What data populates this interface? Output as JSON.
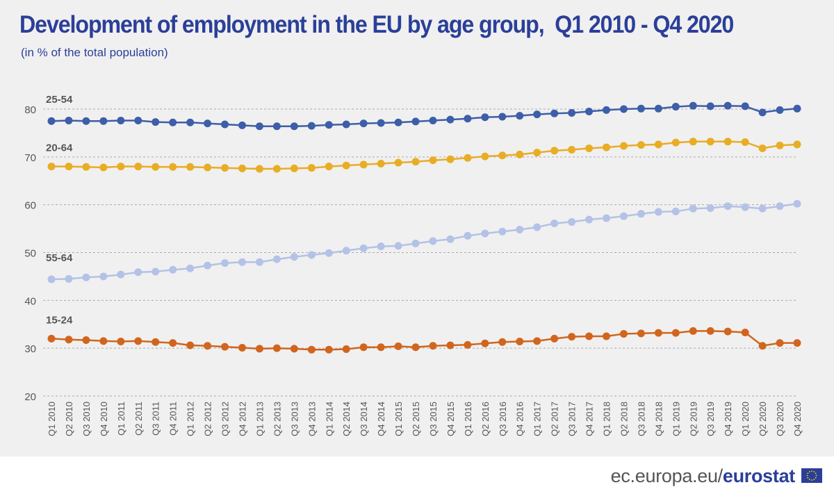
{
  "title": "Development of employment in the EU by age group,  Q1 2010 - Q4 2020",
  "subtitle": "(in % of the total population)",
  "footer": {
    "site": "ec.europa.eu/",
    "brand": "eurostat"
  },
  "colors": {
    "s2554": "#3d5ea8",
    "s2064": "#e8ad24",
    "s5564": "#b3c2e6",
    "s1524": "#d2651e",
    "grid": "#aaaaaa",
    "axis_text": "#555555",
    "panel": "#f0f0f0"
  },
  "chart_data": {
    "type": "line",
    "title": "Development of employment in the EU by age group,  Q1 2010 - Q4 2020",
    "subtitle": "(in % of the total population)",
    "ylim": [
      20,
      80
    ],
    "yticks": [
      20,
      30,
      40,
      50,
      60,
      70,
      80
    ],
    "grid": true,
    "legend": "inline labels above each series",
    "categories": [
      "Q1 2010",
      "Q2 2010",
      "Q3 2010",
      "Q4 2010",
      "Q1 2011",
      "Q2 2011",
      "Q3 2011",
      "Q4 2011",
      "Q1 2012",
      "Q2 2012",
      "Q3 2012",
      "Q4 2012",
      "Q1 2013",
      "Q2 2013",
      "Q3 2013",
      "Q4 2013",
      "Q1 2014",
      "Q2 2014",
      "Q3 2014",
      "Q4 2014",
      "Q1 2015",
      "Q2 2015",
      "Q3 2015",
      "Q4 2015",
      "Q1 2016",
      "Q2 2016",
      "Q3 2016",
      "Q4 2016",
      "Q1 2017",
      "Q2 2017",
      "Q3 2017",
      "Q4 2017",
      "Q1 2018",
      "Q2 2018",
      "Q3 2018",
      "Q4 2018",
      "Q1 2019",
      "Q2 2019",
      "Q3 2019",
      "Q4 2019",
      "Q1 2020",
      "Q2 2020",
      "Q3 2020",
      "Q4 2020"
    ],
    "series": [
      {
        "name": "25-54",
        "color_key": "s2554",
        "values": [
          77.5,
          77.6,
          77.5,
          77.5,
          77.6,
          77.6,
          77.3,
          77.2,
          77.2,
          77.0,
          76.8,
          76.6,
          76.4,
          76.4,
          76.4,
          76.5,
          76.7,
          76.8,
          77.0,
          77.1,
          77.2,
          77.4,
          77.6,
          77.8,
          78.0,
          78.3,
          78.4,
          78.6,
          78.9,
          79.1,
          79.2,
          79.5,
          79.8,
          80.0,
          80.1,
          80.1,
          80.5,
          80.7,
          80.6,
          80.7,
          80.6,
          79.3,
          79.8,
          80.1
        ]
      },
      {
        "name": "20-64",
        "color_key": "s2064",
        "values": [
          68.0,
          68.0,
          67.9,
          67.8,
          68.0,
          68.0,
          67.9,
          67.9,
          67.9,
          67.8,
          67.7,
          67.6,
          67.5,
          67.5,
          67.6,
          67.7,
          68.0,
          68.2,
          68.4,
          68.6,
          68.8,
          69.0,
          69.3,
          69.5,
          69.8,
          70.1,
          70.3,
          70.5,
          70.9,
          71.3,
          71.5,
          71.8,
          72.0,
          72.3,
          72.5,
          72.6,
          73.0,
          73.2,
          73.2,
          73.2,
          73.1,
          71.8,
          72.4,
          72.6
        ]
      },
      {
        "name": "55-64",
        "color_key": "s5564",
        "values": [
          44.4,
          44.5,
          44.8,
          45.0,
          45.4,
          45.9,
          46.0,
          46.4,
          46.7,
          47.3,
          47.8,
          48.0,
          48.0,
          48.6,
          49.1,
          49.5,
          49.9,
          50.4,
          50.9,
          51.3,
          51.4,
          51.9,
          52.4,
          52.8,
          53.5,
          54.0,
          54.4,
          54.8,
          55.3,
          56.1,
          56.4,
          56.9,
          57.2,
          57.6,
          58.1,
          58.5,
          58.6,
          59.2,
          59.3,
          59.7,
          59.5,
          59.2,
          59.7,
          60.2
        ]
      },
      {
        "name": "15-24",
        "color_key": "s1524",
        "values": [
          32.0,
          31.8,
          31.7,
          31.5,
          31.4,
          31.5,
          31.3,
          31.1,
          30.6,
          30.5,
          30.3,
          30.1,
          29.9,
          30.0,
          29.9,
          29.7,
          29.7,
          29.8,
          30.2,
          30.2,
          30.4,
          30.2,
          30.5,
          30.6,
          30.7,
          31.0,
          31.3,
          31.4,
          31.5,
          32.0,
          32.4,
          32.5,
          32.5,
          33.0,
          33.1,
          33.2,
          33.2,
          33.6,
          33.6,
          33.5,
          33.3,
          30.5,
          31.1,
          31.1
        ]
      }
    ]
  }
}
